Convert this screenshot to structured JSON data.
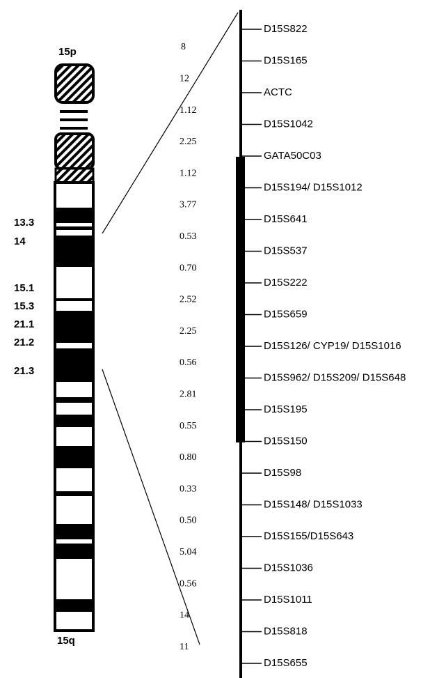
{
  "arm_labels": {
    "p": "15p",
    "q": "15q"
  },
  "bands": [
    "13.3",
    "14",
    "15.1",
    "15.3",
    "21.1",
    "21.2",
    "21.3"
  ],
  "markers": [
    "D15S822",
    "D15S165",
    "ACTC",
    "D15S1042",
    "GATA50C03",
    "D15S194/ D15S1012",
    "D15S641",
    "D15S537",
    "D15S222",
    "D15S659",
    "D15S126/ CYP19/ D15S1016",
    "D15S962/ D15S209/ D15S648",
    "D15S195",
    "D15S150",
    "D15S98",
    "D15S148/ D15S1033",
    "D15S155/D15S643",
    "D15S1036",
    "D15S1011",
    "D15S818",
    "D15S655"
  ],
  "distances": [
    "8",
    "12",
    "1.12",
    "2.25",
    "1.12",
    "3.77",
    "0.53",
    "0.70",
    "2.52",
    "2.25",
    "0.56",
    "2.81",
    "0.55",
    "0.80",
    "0.33",
    "0.50",
    "5.04",
    "0.56",
    "14",
    "11"
  ]
}
